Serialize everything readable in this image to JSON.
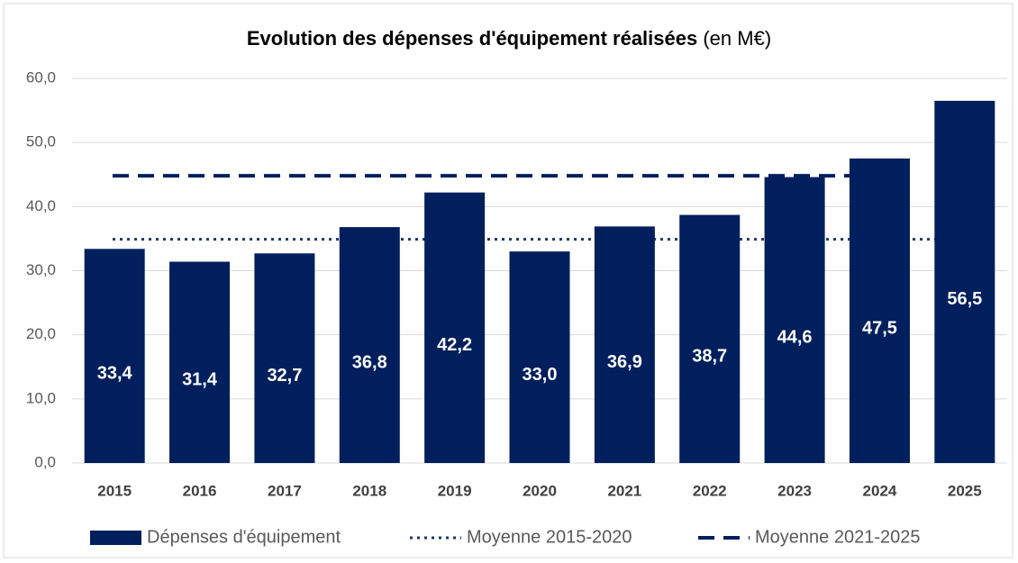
{
  "chart_data": {
    "type": "bar",
    "title": "Evolution des dépenses d'équipement réalisées",
    "title_unit": "(en M€)",
    "categories": [
      "2015",
      "2016",
      "2017",
      "2018",
      "2019",
      "2020",
      "2021",
      "2022",
      "2023",
      "2024",
      "2025"
    ],
    "series": [
      {
        "name": "Dépenses d'équipement",
        "color": "#001f5c",
        "values": [
          33.4,
          31.4,
          32.7,
          36.8,
          42.2,
          33.0,
          36.9,
          38.7,
          44.6,
          47.5,
          56.5
        ],
        "value_labels": [
          "33,4",
          "31,4",
          "32,7",
          "36,8",
          "42,2",
          "33,0",
          "36,9",
          "38,7",
          "44,6",
          "47,5",
          "56,5"
        ]
      }
    ],
    "reference_lines": [
      {
        "name": "Moyenne 2015-2020",
        "value": 34.9,
        "style": "dotted",
        "color": "#1f3864"
      },
      {
        "name": "Moyenne 2021-2025",
        "value": 44.8,
        "style": "dashed",
        "color": "#001f5c"
      }
    ],
    "ylim": [
      0,
      60
    ],
    "yticks": [
      {
        "value": 0,
        "label": "0,0"
      },
      {
        "value": 10,
        "label": "10,0"
      },
      {
        "value": 20,
        "label": "20,0"
      },
      {
        "value": 30,
        "label": "30,0"
      },
      {
        "value": 40,
        "label": "40,0"
      },
      {
        "value": 50,
        "label": "50,0"
      },
      {
        "value": 60,
        "label": "60,0"
      }
    ],
    "grid": true,
    "legend": "bottom"
  }
}
